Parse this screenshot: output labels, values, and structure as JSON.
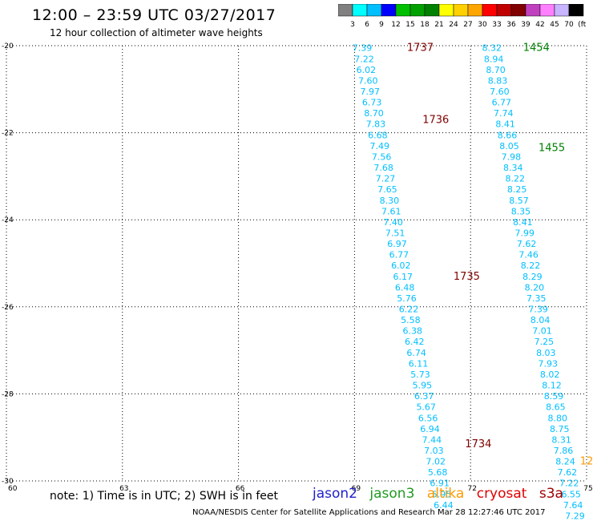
{
  "header": {
    "title": "12:00 – 23:59 UTC 03/27/2017",
    "subtitle": "12 hour collection of altimeter wave heights"
  },
  "color_legend": {
    "colors": [
      "#808080",
      "#00ffff",
      "#00bfff",
      "#0000ff",
      "#00c000",
      "#00a000",
      "#008000",
      "#ffff00",
      "#ffd000",
      "#ffa500",
      "#ff0000",
      "#c00000",
      "#800000",
      "#c040c0",
      "#ff80ff",
      "#c8b4ff",
      "#000000"
    ],
    "labels": [
      "3",
      "6",
      "9",
      "12",
      "15",
      "18",
      "21",
      "24",
      "27",
      "30",
      "33",
      "36",
      "39",
      "42",
      "45",
      "70",
      "(ft)"
    ]
  },
  "footer": {
    "note": "note:  1) Time is in UTC;  2) SWH is in feet",
    "satellites": [
      {
        "name": "jason2",
        "color": "#1f1fcc"
      },
      {
        "name": "jason3",
        "color": "#1f9a1f"
      },
      {
        "name": "altika",
        "color": "#ff9900"
      },
      {
        "name": "cryosat",
        "color": "#e00000"
      },
      {
        "name": "s3a",
        "color": "#a00000"
      }
    ],
    "credit": "NOAA/NESDIS Center for Satellite Applications and Research     Mar 28 12:27:46 UTC 2017"
  },
  "chart_data": {
    "type": "scatter",
    "xlim": [
      60,
      75
    ],
    "ylim": [
      -30,
      -20
    ],
    "x_ticks": [
      60,
      63,
      66,
      69,
      72,
      75
    ],
    "y_ticks": [
      -20,
      -22,
      -24,
      -26,
      -28,
      -30
    ],
    "grid": true,
    "series": [
      {
        "name": "s3a",
        "color": "#00bfff",
        "points": [
          {
            "lon": 69.2,
            "lat": -20.05,
            "swh": "7.39"
          },
          {
            "lon": 69.25,
            "lat": -20.3,
            "swh": "7.22"
          },
          {
            "lon": 69.3,
            "lat": -20.55,
            "swh": "6.02"
          },
          {
            "lon": 69.35,
            "lat": -20.8,
            "swh": "7.60"
          },
          {
            "lon": 69.4,
            "lat": -21.05,
            "swh": "7.97"
          },
          {
            "lon": 69.45,
            "lat": -21.3,
            "swh": "6.73"
          },
          {
            "lon": 69.5,
            "lat": -21.55,
            "swh": "8.70"
          },
          {
            "lon": 69.55,
            "lat": -21.8,
            "swh": "7.83"
          },
          {
            "lon": 69.6,
            "lat": -22.05,
            "swh": "6.68"
          },
          {
            "lon": 69.65,
            "lat": -22.3,
            "swh": "7.49"
          },
          {
            "lon": 69.7,
            "lat": -22.55,
            "swh": "7.56"
          },
          {
            "lon": 69.75,
            "lat": -22.8,
            "swh": "7.68"
          },
          {
            "lon": 69.8,
            "lat": -23.05,
            "swh": "7.27"
          },
          {
            "lon": 69.85,
            "lat": -23.3,
            "swh": "7.65"
          },
          {
            "lon": 69.9,
            "lat": -23.55,
            "swh": "8.30"
          },
          {
            "lon": 69.95,
            "lat": -23.8,
            "swh": "7.61"
          },
          {
            "lon": 70.0,
            "lat": -24.05,
            "swh": "7.40"
          },
          {
            "lon": 70.05,
            "lat": -24.3,
            "swh": "7.51"
          },
          {
            "lon": 70.1,
            "lat": -24.55,
            "swh": "6.97"
          },
          {
            "lon": 70.15,
            "lat": -24.8,
            "swh": "6.77"
          },
          {
            "lon": 70.2,
            "lat": -25.05,
            "swh": "6.02"
          },
          {
            "lon": 70.25,
            "lat": -25.3,
            "swh": "6.17"
          },
          {
            "lon": 70.3,
            "lat": -25.55,
            "swh": "6.48"
          },
          {
            "lon": 70.35,
            "lat": -25.8,
            "swh": "5.76"
          },
          {
            "lon": 70.4,
            "lat": -26.05,
            "swh": "6.22"
          },
          {
            "lon": 70.45,
            "lat": -26.3,
            "swh": "5.58"
          },
          {
            "lon": 70.5,
            "lat": -26.55,
            "swh": "6.38"
          },
          {
            "lon": 70.55,
            "lat": -26.8,
            "swh": "6.42"
          },
          {
            "lon": 70.6,
            "lat": -27.05,
            "swh": "6.74"
          },
          {
            "lon": 70.65,
            "lat": -27.3,
            "swh": "6.11"
          },
          {
            "lon": 70.7,
            "lat": -27.55,
            "swh": "5.73"
          },
          {
            "lon": 70.75,
            "lat": -27.8,
            "swh": "5.95"
          },
          {
            "lon": 70.8,
            "lat": -28.05,
            "swh": "6.37"
          },
          {
            "lon": 70.85,
            "lat": -28.3,
            "swh": "5.67"
          },
          {
            "lon": 70.9,
            "lat": -28.55,
            "swh": "6.56"
          },
          {
            "lon": 70.95,
            "lat": -28.8,
            "swh": "6.94"
          },
          {
            "lon": 71.0,
            "lat": -29.05,
            "swh": "7.44"
          },
          {
            "lon": 71.05,
            "lat": -29.3,
            "swh": "7.03"
          },
          {
            "lon": 71.1,
            "lat": -29.55,
            "swh": "7.02"
          },
          {
            "lon": 71.15,
            "lat": -29.8,
            "swh": "5.68"
          },
          {
            "lon": 71.2,
            "lat": -30.05,
            "swh": "6.91"
          },
          {
            "lon": 71.25,
            "lat": -30.3,
            "swh": "5.95"
          },
          {
            "lon": 71.3,
            "lat": -30.55,
            "swh": "6.44"
          }
        ]
      },
      {
        "name": "s3a",
        "color": "#00bfff",
        "points": [
          {
            "lon": 72.55,
            "lat": -20.05,
            "swh": "8.32"
          },
          {
            "lon": 72.6,
            "lat": -20.3,
            "swh": "8.94"
          },
          {
            "lon": 72.65,
            "lat": -20.55,
            "swh": "8.70"
          },
          {
            "lon": 72.7,
            "lat": -20.8,
            "swh": "8.83"
          },
          {
            "lon": 72.75,
            "lat": -21.05,
            "swh": "7.60"
          },
          {
            "lon": 72.8,
            "lat": -21.3,
            "swh": "6.77"
          },
          {
            "lon": 72.85,
            "lat": -21.55,
            "swh": "7.74"
          },
          {
            "lon": 72.9,
            "lat": -21.8,
            "swh": "8.41"
          },
          {
            "lon": 72.95,
            "lat": -22.05,
            "swh": "8.66"
          },
          {
            "lon": 73.0,
            "lat": -22.3,
            "swh": "8.05"
          },
          {
            "lon": 73.05,
            "lat": -22.55,
            "swh": "7.98"
          },
          {
            "lon": 73.1,
            "lat": -22.8,
            "swh": "8.34"
          },
          {
            "lon": 73.15,
            "lat": -23.05,
            "swh": "8.22"
          },
          {
            "lon": 73.2,
            "lat": -23.3,
            "swh": "8.25"
          },
          {
            "lon": 73.25,
            "lat": -23.55,
            "swh": "8.57"
          },
          {
            "lon": 73.3,
            "lat": -23.8,
            "swh": "8.35"
          },
          {
            "lon": 73.35,
            "lat": -24.05,
            "swh": "8.41"
          },
          {
            "lon": 73.4,
            "lat": -24.3,
            "swh": "7.99"
          },
          {
            "lon": 73.45,
            "lat": -24.55,
            "swh": "7.62"
          },
          {
            "lon": 73.5,
            "lat": -24.8,
            "swh": "7.46"
          },
          {
            "lon": 73.55,
            "lat": -25.05,
            "swh": "8.22"
          },
          {
            "lon": 73.6,
            "lat": -25.3,
            "swh": "8.29"
          },
          {
            "lon": 73.65,
            "lat": -25.55,
            "swh": "8.20"
          },
          {
            "lon": 73.7,
            "lat": -25.8,
            "swh": "7.35"
          },
          {
            "lon": 73.75,
            "lat": -26.05,
            "swh": "7.39"
          },
          {
            "lon": 73.8,
            "lat": -26.3,
            "swh": "8.04"
          },
          {
            "lon": 73.85,
            "lat": -26.55,
            "swh": "7.01"
          },
          {
            "lon": 73.9,
            "lat": -26.8,
            "swh": "7.25"
          },
          {
            "lon": 73.95,
            "lat": -27.05,
            "swh": "8.03"
          },
          {
            "lon": 74.0,
            "lat": -27.3,
            "swh": "7.93"
          },
          {
            "lon": 74.05,
            "lat": -27.55,
            "swh": "8.02"
          },
          {
            "lon": 74.1,
            "lat": -27.8,
            "swh": "8.12"
          },
          {
            "lon": 74.15,
            "lat": -28.05,
            "swh": "8.59"
          },
          {
            "lon": 74.2,
            "lat": -28.3,
            "swh": "8.65"
          },
          {
            "lon": 74.25,
            "lat": -28.55,
            "swh": "8.80"
          },
          {
            "lon": 74.3,
            "lat": -28.8,
            "swh": "8.75"
          },
          {
            "lon": 74.35,
            "lat": -29.05,
            "swh": "8.31"
          },
          {
            "lon": 74.4,
            "lat": -29.3,
            "swh": "7.86"
          },
          {
            "lon": 74.45,
            "lat": -29.55,
            "swh": "8.24"
          },
          {
            "lon": 74.5,
            "lat": -29.8,
            "swh": "7.62"
          },
          {
            "lon": 74.55,
            "lat": -30.05,
            "swh": "7.22"
          },
          {
            "lon": 74.6,
            "lat": -30.3,
            "swh": "6.55"
          },
          {
            "lon": 74.65,
            "lat": -30.55,
            "swh": "7.64"
          },
          {
            "lon": 74.7,
            "lat": -30.8,
            "swh": "7.29"
          },
          {
            "lon": 74.75,
            "lat": -31.05,
            "swh": "7.11"
          },
          {
            "lon": 74.8,
            "lat": -31.3,
            "swh": "6.43"
          }
        ]
      }
    ],
    "time_labels": [
      {
        "text": "1737",
        "lon": 70.7,
        "lat": -20.05,
        "color": "#800000"
      },
      {
        "text": "1736",
        "lon": 71.1,
        "lat": -21.7,
        "color": "#800000"
      },
      {
        "text": "1735",
        "lon": 71.9,
        "lat": -25.3,
        "color": "#800000"
      },
      {
        "text": "1734",
        "lon": 72.2,
        "lat": -29.15,
        "color": "#800000"
      },
      {
        "text": "1454",
        "lon": 73.7,
        "lat": -20.05,
        "color": "#008000"
      },
      {
        "text": "1455",
        "lon": 74.1,
        "lat": -22.35,
        "color": "#008000"
      },
      {
        "text": "12",
        "lon": 75.0,
        "lat": -29.55,
        "color": "#ff9900"
      }
    ]
  }
}
